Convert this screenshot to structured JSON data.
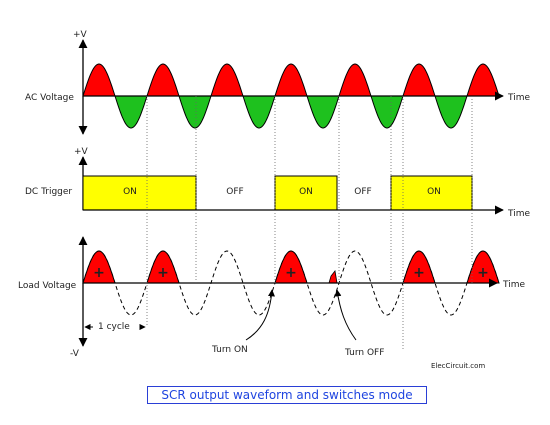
{
  "rows": {
    "ac": {
      "label": "AC Voltage",
      "axis_top": "+V",
      "axis_end": "Time"
    },
    "trigger": {
      "label": "DC Trigger",
      "axis_top": "+V",
      "axis_end": "Time",
      "segments": [
        "ON",
        "OFF",
        "ON",
        "OFF",
        "ON"
      ]
    },
    "load": {
      "label": "Load  Voltage",
      "axis_bottom": "-V",
      "axis_end": "Time",
      "pulse_sign": "+"
    }
  },
  "annotations": {
    "cycle": "1 cycle",
    "turn_on": "Turn ON",
    "turn_off": "Turn OFF",
    "watermark": "ElecCircuit.com"
  },
  "caption": "SCR output waveform and switches mode",
  "colors": {
    "positive": "#ff0000",
    "negative": "#1ec11e",
    "trigger": "#ffff00",
    "caption": "#1f45e0"
  }
}
